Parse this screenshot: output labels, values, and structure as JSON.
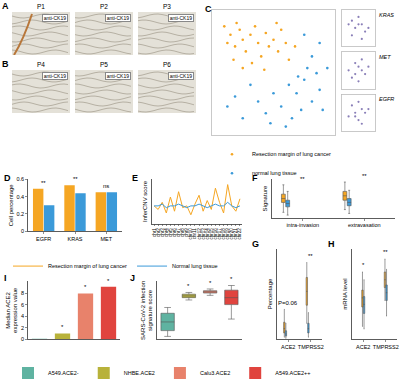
{
  "images": [
    {
      "panel_label": "A",
      "panels": [
        {
          "name": "P1",
          "stain": "anti-CK19"
        },
        {
          "name": "P2",
          "stain": "anti-CK19"
        },
        {
          "name": "P3",
          "stain": "anti-CK19"
        }
      ]
    },
    {
      "panel_label": "B",
      "panels": [
        {
          "name": "P4",
          "stain": "anti-CK19"
        },
        {
          "name": "P5",
          "stain": "anti-CK19"
        },
        {
          "name": "P6",
          "stain": "anti-CK19"
        }
      ]
    }
  ],
  "chart_data": [
    {
      "panel_label": "C",
      "type": "scatter",
      "legend": "bottom",
      "tick_labels": false,
      "xlim": [
        -40,
        40
      ],
      "ylim": [
        -35,
        40
      ],
      "series": [
        {
          "name": "Resection margin of lung cancer",
          "color": "#f5a623",
          "x": [
            -30,
            -28,
            -25,
            -22,
            -20,
            -18,
            -15,
            -12,
            -10,
            -8,
            -5,
            -3,
            0,
            3,
            5,
            8,
            -26,
            -20,
            -14,
            -6,
            10,
            14,
            -32,
            -24,
            2
          ],
          "y": [
            20,
            25,
            18,
            28,
            22,
            15,
            25,
            30,
            20,
            12,
            26,
            18,
            22,
            15,
            28,
            20,
            10,
            5,
            8,
            4,
            10,
            18,
            30,
            32,
            32
          ]
        },
        {
          "name": "normal lung tissue",
          "color": "#3b9ad9",
          "x": [
            10,
            15,
            20,
            25,
            30,
            18,
            12,
            5,
            0,
            -5,
            -10,
            -15,
            22,
            28,
            32,
            -20,
            -25,
            8,
            -2,
            16,
            25,
            30,
            20,
            -30,
            35
          ],
          "y": [
            -5,
            -10,
            -2,
            -15,
            -8,
            -20,
            -25,
            -18,
            -10,
            -22,
            -15,
            -5,
            5,
            2,
            -20,
            -25,
            -12,
            -30,
            -28,
            0,
            12,
            20,
            25,
            -18,
            5
          ]
        }
      ]
    },
    {
      "type": "scatter",
      "title": "KRAS",
      "color": "#8a7fb8",
      "tick_labels": false,
      "xlim": [
        0,
        10
      ],
      "ylim": [
        0,
        10
      ],
      "x": [
        2,
        3,
        4,
        5,
        6,
        7,
        8,
        3,
        6,
        5
      ],
      "y": [
        6,
        7,
        5,
        8,
        6,
        4,
        5,
        3,
        2,
        6
      ]
    },
    {
      "type": "scatter",
      "title": "MET",
      "color": "#8a7fb8",
      "tick_labels": false,
      "xlim": [
        0,
        10
      ],
      "ylim": [
        0,
        10
      ],
      "x": [
        2,
        4,
        5,
        6,
        7,
        3,
        8,
        5,
        4,
        6
      ],
      "y": [
        5,
        7,
        6,
        8,
        4,
        3,
        6,
        2,
        4,
        5
      ]
    },
    {
      "type": "scatter",
      "title": "EGFR",
      "color": "#8a7fb8",
      "tick_labels": false,
      "xlim": [
        0,
        10
      ],
      "ylim": [
        0,
        10
      ],
      "x": [
        3,
        4,
        5,
        6,
        7,
        2,
        8,
        5,
        6,
        4
      ],
      "y": [
        7,
        5,
        8,
        6,
        5,
        4,
        6,
        3,
        2,
        4
      ]
    },
    {
      "panel_label": "D",
      "type": "bar",
      "y_label": "Cell percentage",
      "categories": [
        "EGFR",
        "KRAS",
        "MET"
      ],
      "series": [
        {
          "name": "Resection margin of lung cancer",
          "color": "#f5a623",
          "values": [
            0.49,
            0.53,
            0.45
          ]
        },
        {
          "name": "Normal lung tissue",
          "color": "#3b9ad9",
          "values": [
            0.3,
            0.44,
            0.45
          ]
        }
      ],
      "ylim": [
        0,
        0.6
      ],
      "yticks": [
        0,
        0.2,
        0.4,
        0.6
      ],
      "annotations": [
        {
          "category": "EGFR",
          "text": "**"
        },
        {
          "category": "KRAS",
          "text": "**"
        },
        {
          "category": "MET",
          "text": "ns"
        }
      ]
    },
    {
      "panel_label": "E",
      "type": "line",
      "y_label": "InferCNV score",
      "legend": "bottom",
      "tick_labels": "x",
      "categories": [
        "chr1",
        "chr2",
        "chr3",
        "chr4",
        "chr5",
        "chr6",
        "chr7",
        "chr8",
        "chr9",
        "chr10",
        "chr11",
        "chr12",
        "chr13",
        "chr14",
        "chr15",
        "chr16",
        "chr17",
        "chr18",
        "chr19",
        "chr20",
        "chr21",
        "chr22"
      ],
      "series": [
        {
          "name": "Resection margin of lung cancer",
          "color": "#f5a623",
          "values": [
            1.0,
            0.98,
            1.02,
            0.96,
            1.05,
            0.97,
            1.08,
            0.99,
            1.0,
            0.95,
            1.01,
            1.06,
            0.97,
            1.03,
            0.98,
            1.1,
            1.02,
            0.96,
            1.12,
            1.0,
            0.97,
            1.04
          ]
        },
        {
          "name": "Normal lung tissue",
          "color": "#3b9ad9",
          "values": [
            1.0,
            1.0,
            1.01,
            0.99,
            1.0,
            1.0,
            1.01,
            1.0,
            0.99,
            1.0,
            1.0,
            1.01,
            1.0,
            0.99,
            1.0,
            1.01,
            1.0,
            1.0,
            1.02,
            1.0,
            0.99,
            1.0
          ]
        }
      ],
      "ylim": [
        0.9,
        1.15
      ]
    },
    {
      "panel_label": "F",
      "type": "box",
      "y_label": "Signature",
      "tick_labels": "x",
      "categories": [
        "intra-invasion",
        "extravasation"
      ],
      "series": [
        {
          "name": "Resection margin of lung cancer",
          "color": "#f5a623",
          "min": [
            0.2,
            0.25
          ],
          "q1": [
            0.38,
            0.42
          ],
          "median": [
            0.45,
            0.5
          ],
          "q3": [
            0.53,
            0.58
          ],
          "max": [
            0.7,
            0.75
          ]
        },
        {
          "name": "Normal lung tissue",
          "color": "#3b9ad9",
          "min": [
            0.15,
            0.18
          ],
          "q1": [
            0.3,
            0.32
          ],
          "median": [
            0.36,
            0.38
          ],
          "q3": [
            0.42,
            0.45
          ],
          "max": [
            0.58,
            0.6
          ]
        }
      ],
      "ylim": [
        0.1,
        0.8
      ],
      "annotations": [
        {
          "category": "intra-invasion",
          "text": "**"
        },
        {
          "category": "extravasation",
          "text": "**"
        }
      ]
    },
    {
      "panel_label": "G",
      "type": "box",
      "y_label": "Percentage",
      "tick_labels": "x",
      "categories": [
        "ACE2",
        "TMPRSS2"
      ],
      "series": [
        {
          "name": "Resection margin of lung cancer",
          "color": "#f5a623",
          "min": [
            0.02,
            0.15
          ],
          "q1": [
            0.06,
            0.32
          ],
          "median": [
            0.1,
            0.45
          ],
          "q3": [
            0.16,
            0.58
          ],
          "max": [
            0.28,
            0.72
          ]
        },
        {
          "name": "Normal lung tissue",
          "color": "#3b9ad9",
          "min": [
            0.01,
            0.02
          ],
          "q1": [
            0.03,
            0.06
          ],
          "median": [
            0.05,
            0.1
          ],
          "q3": [
            0.08,
            0.15
          ],
          "max": [
            0.15,
            0.25
          ]
        }
      ],
      "ylim": [
        0,
        0.85
      ],
      "annotations": [
        {
          "category": "ACE2",
          "text": "P=0.06"
        },
        {
          "category": "TMPRSS2",
          "text": "**"
        }
      ]
    },
    {
      "panel_label": "H",
      "type": "box",
      "y_label": "mRNA level",
      "tick_labels": "x",
      "categories": [
        "ACE2",
        "TMPRSS2"
      ],
      "series": [
        {
          "name": "Resection margin of lung cancer",
          "color": "#f5a623",
          "min": [
            0.3,
            0.5
          ],
          "q1": [
            0.45,
            0.6
          ],
          "median": [
            0.52,
            0.66
          ],
          "q3": [
            0.58,
            0.72
          ],
          "max": [
            0.72,
            0.82
          ]
        },
        {
          "name": "Normal lung tissue",
          "color": "#3b9ad9",
          "min": [
            0.28,
            0.38
          ],
          "q1": [
            0.4,
            0.5
          ],
          "median": [
            0.47,
            0.56
          ],
          "q3": [
            0.53,
            0.62
          ],
          "max": [
            0.66,
            0.74
          ]
        }
      ],
      "ylim": [
        0.2,
        0.9
      ],
      "annotations": [
        {
          "category": "ACE2",
          "text": "*"
        },
        {
          "category": "TMPRSS2",
          "text": "**"
        }
      ]
    },
    {
      "panel_label": "I",
      "type": "bar",
      "y_label": "Median ACE2 expression value",
      "tick_labels": "y",
      "legend": "bottom",
      "categories": [
        "A549.ACE2-",
        "NHBE.ACE2",
        "Calu3.ACE2",
        "A549.ACE2++"
      ],
      "values": [
        0.1,
        1.0,
        7.9,
        9.1
      ],
      "colors": [
        "#5fb3a1",
        "#b8b23a",
        "#e8826b",
        "#e0443e"
      ],
      "ylim": [
        0,
        10
      ],
      "yticks": [
        0,
        2,
        4,
        6,
        8
      ],
      "annotations": [
        {
          "category": "NHBE.ACE2",
          "text": "*"
        },
        {
          "category": "Calu3.ACE2",
          "text": "*"
        },
        {
          "category": "A549.ACE2++",
          "text": "*"
        }
      ]
    },
    {
      "panel_label": "J",
      "type": "box",
      "y_label": "SARS-CoV-2 infection signature score",
      "tick_labels": false,
      "categories": [
        "A549.ACE2-",
        "NHBE.ACE2",
        "Calu3.ACE2",
        "A549.ACE2++"
      ],
      "colors": [
        "#5fb3a1",
        "#b8b23a",
        "#e8826b",
        "#e0443e"
      ],
      "min": [
        0.05,
        0.68,
        0.76,
        0.35
      ],
      "q1": [
        0.15,
        0.72,
        0.8,
        0.6
      ],
      "median": [
        0.3,
        0.75,
        0.82,
        0.72
      ],
      "q3": [
        0.45,
        0.78,
        0.84,
        0.85
      ],
      "max": [
        0.55,
        0.81,
        0.87,
        0.93
      ],
      "ylim": [
        0,
        1
      ],
      "annotations": [
        {
          "category": "NHBE.ACE2",
          "text": "*"
        },
        {
          "category": "Calu3.ACE2",
          "text": "*"
        },
        {
          "category": "A549.ACE2++",
          "text": "*"
        }
      ]
    }
  ]
}
